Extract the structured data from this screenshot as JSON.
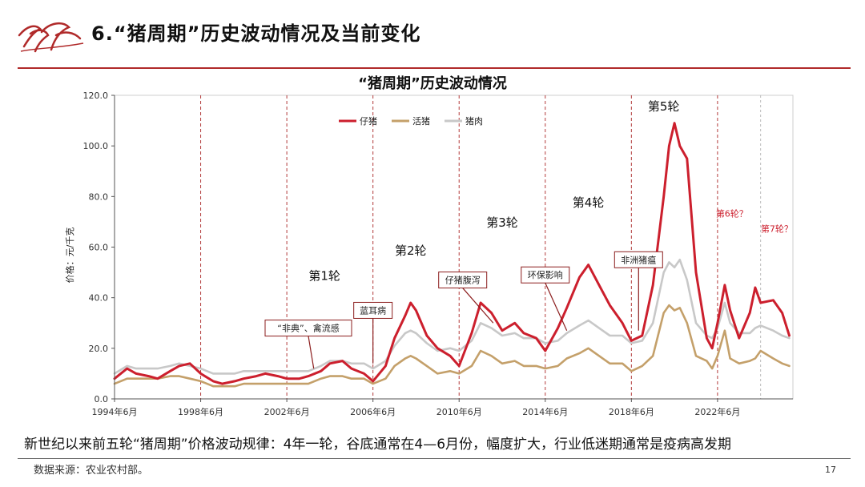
{
  "header": {
    "title": "6.“猪周期”历史波动情况及当前变化"
  },
  "colors": {
    "accent": "#b02a2a",
    "piglet": "#cc1f2d",
    "hog": "#c4a06a",
    "pork": "#c8c8c8",
    "cycle_line": "#b23a3a"
  },
  "chart_data": {
    "type": "line",
    "title": "“猪周期”历史波动情况",
    "ylabel": "价格：元/千克",
    "xlabel": "",
    "ylim": [
      0,
      120
    ],
    "yticks": [
      "0.0",
      "20.0",
      "40.0",
      "60.0",
      "80.0",
      "100.0",
      "120.0"
    ],
    "xlim": [
      "1994-06",
      "2025-12"
    ],
    "xticks": [
      "1994年6月",
      "1998年6月",
      "2002年6月",
      "2006年6月",
      "2010年6月",
      "2014年6月",
      "2018年6月",
      "2022年6月"
    ],
    "legend_position": "top-center",
    "series": [
      {
        "name": "仔猪",
        "color": "#cc1f2d",
        "points": [
          [
            "1994-06",
            8
          ],
          [
            "1995-01",
            12
          ],
          [
            "1995-06",
            10
          ],
          [
            "1996-01",
            9
          ],
          [
            "1996-06",
            8
          ],
          [
            "1997-01",
            11
          ],
          [
            "1997-06",
            13
          ],
          [
            "1997-12",
            14
          ],
          [
            "1998-06",
            10
          ],
          [
            "1999-01",
            7
          ],
          [
            "1999-06",
            6
          ],
          [
            "2000-01",
            7
          ],
          [
            "2000-06",
            8
          ],
          [
            "2001-01",
            9
          ],
          [
            "2001-06",
            10
          ],
          [
            "2002-01",
            9
          ],
          [
            "2002-06",
            8
          ],
          [
            "2003-01",
            8
          ],
          [
            "2003-06",
            9
          ],
          [
            "2004-01",
            11
          ],
          [
            "2004-06",
            14
          ],
          [
            "2005-01",
            15
          ],
          [
            "2005-06",
            12
          ],
          [
            "2006-01",
            10
          ],
          [
            "2006-06",
            7
          ],
          [
            "2007-01",
            13
          ],
          [
            "2007-06",
            24
          ],
          [
            "2007-12",
            33
          ],
          [
            "2008-03",
            38
          ],
          [
            "2008-06",
            35
          ],
          [
            "2008-12",
            25
          ],
          [
            "2009-06",
            20
          ],
          [
            "2010-01",
            17
          ],
          [
            "2010-06",
            13
          ],
          [
            "2011-01",
            26
          ],
          [
            "2011-06",
            38
          ],
          [
            "2011-12",
            34
          ],
          [
            "2012-06",
            27
          ],
          [
            "2013-01",
            30
          ],
          [
            "2013-06",
            26
          ],
          [
            "2014-01",
            24
          ],
          [
            "2014-06",
            19
          ],
          [
            "2015-01",
            28
          ],
          [
            "2015-06",
            36
          ],
          [
            "2016-01",
            48
          ],
          [
            "2016-06",
            53
          ],
          [
            "2016-12",
            45
          ],
          [
            "2017-06",
            37
          ],
          [
            "2018-01",
            30
          ],
          [
            "2018-06",
            23
          ],
          [
            "2018-12",
            25
          ],
          [
            "2019-06",
            45
          ],
          [
            "2019-12",
            80
          ],
          [
            "2020-03",
            100
          ],
          [
            "2020-06",
            109
          ],
          [
            "2020-09",
            100
          ],
          [
            "2021-01",
            95
          ],
          [
            "2021-06",
            50
          ],
          [
            "2021-12",
            24
          ],
          [
            "2022-03",
            20
          ],
          [
            "2022-06",
            30
          ],
          [
            "2022-10",
            45
          ],
          [
            "2023-01",
            35
          ],
          [
            "2023-06",
            24
          ],
          [
            "2023-12",
            34
          ],
          [
            "2024-03",
            44
          ],
          [
            "2024-06",
            38
          ],
          [
            "2025-01",
            39
          ],
          [
            "2025-06",
            34
          ],
          [
            "2025-10",
            25
          ]
        ]
      },
      {
        "name": "活猪",
        "color": "#c4a06a",
        "points": [
          [
            "1994-06",
            6
          ],
          [
            "1995-01",
            8
          ],
          [
            "1995-06",
            8
          ],
          [
            "1996-01",
            8
          ],
          [
            "1996-06",
            8
          ],
          [
            "1997-01",
            9
          ],
          [
            "1997-06",
            9
          ],
          [
            "1997-12",
            8
          ],
          [
            "1998-06",
            7
          ],
          [
            "1999-01",
            5
          ],
          [
            "1999-06",
            5
          ],
          [
            "2000-01",
            5
          ],
          [
            "2000-06",
            6
          ],
          [
            "2001-01",
            6
          ],
          [
            "2001-06",
            6
          ],
          [
            "2002-01",
            6
          ],
          [
            "2002-06",
            6
          ],
          [
            "2003-01",
            6
          ],
          [
            "2003-06",
            6
          ],
          [
            "2004-01",
            8
          ],
          [
            "2004-06",
            9
          ],
          [
            "2005-01",
            9
          ],
          [
            "2005-06",
            8
          ],
          [
            "2006-01",
            8
          ],
          [
            "2006-06",
            6
          ],
          [
            "2007-01",
            8
          ],
          [
            "2007-06",
            13
          ],
          [
            "2007-12",
            16
          ],
          [
            "2008-03",
            17
          ],
          [
            "2008-06",
            16
          ],
          [
            "2008-12",
            13
          ],
          [
            "2009-06",
            10
          ],
          [
            "2010-01",
            11
          ],
          [
            "2010-06",
            10
          ],
          [
            "2011-01",
            13
          ],
          [
            "2011-06",
            19
          ],
          [
            "2011-12",
            17
          ],
          [
            "2012-06",
            14
          ],
          [
            "2013-01",
            15
          ],
          [
            "2013-06",
            13
          ],
          [
            "2014-01",
            13
          ],
          [
            "2014-06",
            12
          ],
          [
            "2015-01",
            13
          ],
          [
            "2015-06",
            16
          ],
          [
            "2016-01",
            18
          ],
          [
            "2016-06",
            20
          ],
          [
            "2016-12",
            17
          ],
          [
            "2017-06",
            14
          ],
          [
            "2018-01",
            14
          ],
          [
            "2018-06",
            11
          ],
          [
            "2018-12",
            13
          ],
          [
            "2019-06",
            17
          ],
          [
            "2019-12",
            34
          ],
          [
            "2020-03",
            37
          ],
          [
            "2020-06",
            35
          ],
          [
            "2020-09",
            36
          ],
          [
            "2021-01",
            30
          ],
          [
            "2021-06",
            17
          ],
          [
            "2021-12",
            15
          ],
          [
            "2022-03",
            12
          ],
          [
            "2022-06",
            17
          ],
          [
            "2022-10",
            27
          ],
          [
            "2023-01",
            16
          ],
          [
            "2023-06",
            14
          ],
          [
            "2023-12",
            15
          ],
          [
            "2024-03",
            16
          ],
          [
            "2024-06",
            19
          ],
          [
            "2025-01",
            16
          ],
          [
            "2025-06",
            14
          ],
          [
            "2025-10",
            13
          ]
        ]
      },
      {
        "name": "猪肉",
        "color": "#c8c8c8",
        "points": [
          [
            "1994-06",
            10
          ],
          [
            "1995-01",
            13
          ],
          [
            "1995-06",
            12
          ],
          [
            "1996-01",
            12
          ],
          [
            "1996-06",
            12
          ],
          [
            "1997-01",
            13
          ],
          [
            "1997-06",
            14
          ],
          [
            "1997-12",
            13
          ],
          [
            "1998-06",
            12
          ],
          [
            "1999-01",
            10
          ],
          [
            "1999-06",
            10
          ],
          [
            "2000-01",
            10
          ],
          [
            "2000-06",
            11
          ],
          [
            "2001-01",
            11
          ],
          [
            "2001-06",
            11
          ],
          [
            "2002-01",
            11
          ],
          [
            "2002-06",
            11
          ],
          [
            "2003-01",
            11
          ],
          [
            "2003-06",
            11
          ],
          [
            "2004-01",
            13
          ],
          [
            "2004-06",
            15
          ],
          [
            "2005-01",
            15
          ],
          [
            "2005-06",
            14
          ],
          [
            "2006-01",
            14
          ],
          [
            "2006-06",
            12
          ],
          [
            "2007-01",
            15
          ],
          [
            "2007-06",
            21
          ],
          [
            "2007-12",
            26
          ],
          [
            "2008-03",
            27
          ],
          [
            "2008-06",
            26
          ],
          [
            "2008-12",
            22
          ],
          [
            "2009-06",
            19
          ],
          [
            "2010-01",
            20
          ],
          [
            "2010-06",
            19
          ],
          [
            "2011-01",
            23
          ],
          [
            "2011-06",
            30
          ],
          [
            "2011-12",
            28
          ],
          [
            "2012-06",
            25
          ],
          [
            "2013-01",
            26
          ],
          [
            "2013-06",
            24
          ],
          [
            "2014-01",
            24
          ],
          [
            "2014-06",
            22
          ],
          [
            "2015-01",
            23
          ],
          [
            "2015-06",
            26
          ],
          [
            "2016-01",
            29
          ],
          [
            "2016-06",
            31
          ],
          [
            "2016-12",
            28
          ],
          [
            "2017-06",
            25
          ],
          [
            "2018-01",
            25
          ],
          [
            "2018-06",
            22
          ],
          [
            "2018-12",
            23
          ],
          [
            "2019-06",
            30
          ],
          [
            "2019-12",
            50
          ],
          [
            "2020-03",
            54
          ],
          [
            "2020-06",
            52
          ],
          [
            "2020-09",
            55
          ],
          [
            "2021-01",
            47
          ],
          [
            "2021-06",
            30
          ],
          [
            "2021-12",
            25
          ],
          [
            "2022-03",
            24
          ],
          [
            "2022-06",
            28
          ],
          [
            "2022-10",
            38
          ],
          [
            "2023-01",
            30
          ],
          [
            "2023-06",
            26
          ],
          [
            "2023-12",
            26
          ],
          [
            "2024-03",
            28
          ],
          [
            "2024-06",
            29
          ],
          [
            "2025-01",
            27
          ],
          [
            "2025-06",
            25
          ],
          [
            "2025-10",
            24
          ]
        ]
      }
    ],
    "cycle_lines": [
      "1998-06",
      "2002-06",
      "2006-06",
      "2010-06",
      "2014-06",
      "2018-06",
      "2022-06"
    ],
    "forecast_line": "2024-06",
    "cycle_labels": [
      {
        "text": "第1轮",
        "x": "2004-03",
        "y": 47
      },
      {
        "text": "第2轮",
        "x": "2008-03",
        "y": 57
      },
      {
        "text": "第3轮",
        "x": "2012-06",
        "y": 68
      },
      {
        "text": "第4轮",
        "x": "2016-06",
        "y": 76
      },
      {
        "text": "第5轮",
        "x": "2019-12",
        "y": 114
      }
    ],
    "forecast_labels": [
      {
        "text": "第6轮？",
        "x": "2023-02",
        "y": 72
      },
      {
        "text": "第7轮？",
        "x": "2025-03",
        "y": 66
      }
    ],
    "annotations": [
      {
        "text": "“非典”、禽流感",
        "box_x": "2003-06",
        "box_y": 28,
        "target_x": "2003-09",
        "target_y": 12
      },
      {
        "text": "蓝耳病",
        "box_x": "2006-06",
        "box_y": 35,
        "target_x": "2006-06",
        "target_y": 14
      },
      {
        "text": "仔猪腹泻",
        "box_x": "2010-08",
        "box_y": 47,
        "target_x": "2012-01",
        "target_y": 30
      },
      {
        "text": "环保影响",
        "box_x": "2014-06",
        "box_y": 49,
        "target_x": "2015-06",
        "target_y": 27
      },
      {
        "text": "非洲猪瘟",
        "box_x": "2018-10",
        "box_y": 55,
        "target_x": "2018-10",
        "target_y": 27
      }
    ]
  },
  "footer": {
    "summary": "新世纪以来前五轮“猪周期”价格波动规律：4年一轮，谷底通常在4—6月份，幅度扩大，行业低迷期通常是疫病高发期",
    "source": "数据来源：农业农村部。",
    "page_number": "17"
  }
}
